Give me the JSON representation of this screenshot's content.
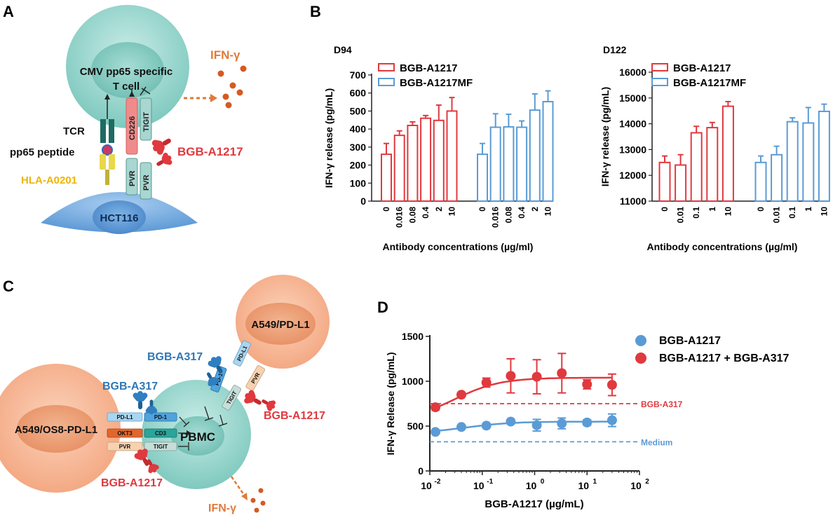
{
  "colors": {
    "red": "#e0393e",
    "blue": "#5b9bd5",
    "teal_cell": "#8fd1c8",
    "hct_cell": "#6aa6dc",
    "orange_cell": "#f4a47c",
    "orange_text": "#e07a3a",
    "gold_text": "#f0b400",
    "dark_blue_text": "#2e78b7"
  },
  "panels": {
    "a": {
      "label": "A",
      "t_cell_label_1": "CMV pp65 specific",
      "t_cell_label_2": "T cell",
      "ifn_label": "IFN-γ",
      "tcr_label": "TCR",
      "peptide_label": "pp65 peptide",
      "hla_label": "HLA-A0201",
      "cd226_label": "CD226",
      "tigit_label": "TIGIT",
      "pvr_label_1": "PVR",
      "pvr_label_2": "PVR",
      "antibody_label": "BGB-A1217",
      "tumor_label": "HCT116"
    },
    "b": {
      "label": "B"
    },
    "c": {
      "label": "C",
      "tumor_1_label": "A549/PD-L1",
      "tumor_2_label": "A549/OS8-PD-L1",
      "pbmc_label": "PBMC",
      "ab_a317_top": "BGB-A317",
      "ab_a317_left": "BGB-A317",
      "ab_a1217_right": "BGB-A1217",
      "ab_a1217_bottom": "BGB-A1217",
      "ifn_label": "IFN-γ",
      "chip_pdl1_left": "PD-L1",
      "chip_pd1_left": "PD-1",
      "chip_okt3": "OKT3",
      "chip_cd3": "CD3",
      "chip_pvr_left": "PVR",
      "chip_tigit_left": "TIGIT",
      "chip_pdl1_top": "PD-L1",
      "chip_pd1_top": "PD-1",
      "chip_tigit_top": "TIGIT",
      "chip_pvr_top": "PVR"
    },
    "d": {
      "label": "D"
    }
  },
  "chart_data": [
    {
      "id": "b_d94",
      "type": "bar",
      "title": "D94",
      "xlabel": "Antibody concentrations (µg/ml)",
      "ylabel": "IFN-γ release (pg/mL)",
      "ylim": [
        0,
        700
      ],
      "yticks": [
        0,
        100,
        200,
        300,
        400,
        500,
        600,
        700
      ],
      "categories": [
        "0",
        "0.016",
        "0.08",
        "0.4",
        "2",
        "10"
      ],
      "series": [
        {
          "name": "BGB-A1217",
          "color": "#e0393e",
          "values": [
            260,
            365,
            420,
            460,
            448,
            500
          ],
          "errors": [
            60,
            25,
            20,
            15,
            85,
            75
          ]
        },
        {
          "name": "BGB-A1217MF",
          "color": "#5b9bd5",
          "values": [
            260,
            410,
            412,
            410,
            505,
            552
          ],
          "errors": [
            60,
            75,
            70,
            35,
            90,
            60
          ]
        }
      ]
    },
    {
      "id": "b_d122",
      "type": "bar",
      "title": "D122",
      "xlabel": "Antibody concentrations (µg/ml)",
      "ylabel": "IFN-γ release (pg/mL)",
      "ylim": [
        11000,
        16000
      ],
      "yticks": [
        11000,
        12000,
        13000,
        14000,
        15000,
        16000
      ],
      "categories": [
        "0",
        "0.01",
        "0.1",
        "1",
        "10"
      ],
      "series": [
        {
          "name": "BGB-A1217",
          "color": "#e0393e",
          "values": [
            12500,
            12400,
            13650,
            13850,
            14680
          ],
          "errors": [
            250,
            400,
            250,
            200,
            180
          ]
        },
        {
          "name": "BGB-A1217MF",
          "color": "#5b9bd5",
          "values": [
            12500,
            12800,
            14080,
            14030,
            14480
          ],
          "errors": [
            250,
            330,
            150,
            600,
            280
          ]
        }
      ]
    },
    {
      "id": "d_dose",
      "type": "scatter",
      "xlabel": "BGB-A1217 (µg/mL)",
      "ylabel": "IFN-γ Release (pg/mL)",
      "xscale": "log",
      "xlim": [
        0.01,
        100
      ],
      "ylim": [
        0,
        1500
      ],
      "xtick_bases": [
        "10",
        "10",
        "10",
        "10",
        "10"
      ],
      "xtick_exps": [
        "-2",
        "-1",
        "0",
        "1",
        "2"
      ],
      "yticks": [
        0,
        500,
        1000,
        1500
      ],
      "x": [
        0.0128,
        0.04,
        0.12,
        0.35,
        1.1,
        3.3,
        10,
        30
      ],
      "series": [
        {
          "name": "BGB-A1217",
          "color": "#5b9bd5",
          "values": [
            435,
            490,
            505,
            550,
            510,
            530,
            540,
            565
          ],
          "errors": [
            0,
            0,
            0,
            0,
            65,
            60,
            30,
            70
          ],
          "fit_bottom": 420,
          "fit_top": 550,
          "fit_ec50": 0.05
        },
        {
          "name": "BGB-A1217 + BGB-A317",
          "color": "#e0393e",
          "values": [
            710,
            850,
            985,
            1060,
            1050,
            1090,
            965,
            960
          ],
          "errors": [
            30,
            0,
            50,
            190,
            190,
            220,
            50,
            120
          ],
          "fit_bottom": 560,
          "fit_top": 1040,
          "fit_ec50": 0.03
        }
      ],
      "reference_lines": [
        {
          "label": "BGB-A317",
          "y": 750,
          "color": "#e0393e"
        },
        {
          "label": "Medium",
          "y": 325,
          "color": "#5b9bd5"
        }
      ]
    }
  ]
}
